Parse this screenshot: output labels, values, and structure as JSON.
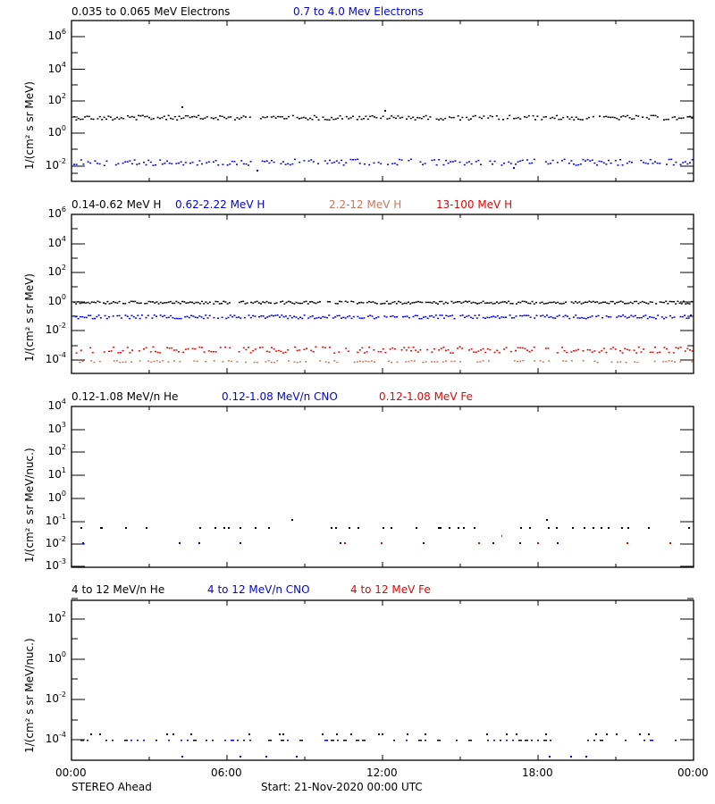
{
  "footer": {
    "spacecraft": "STEREO Ahead",
    "start": "Start: 21-Nov-2020 00:00 UTC"
  },
  "x_axis": {
    "ticks": [
      "00:00",
      "06:00",
      "12:00",
      "18:00",
      "00:00"
    ]
  },
  "colors": {
    "black": "#000000",
    "blue": "#0000ee",
    "salmon": "#c87860",
    "red": "#ee0000"
  },
  "panels": [
    {
      "ylabel": "1/(cm² s sr MeV)",
      "legend": [
        {
          "label": "0.035 to 0.065 MeV Electrons",
          "color": "#000000"
        },
        {
          "label": "0.7 to 4.0 Mev Electrons",
          "color": "#0000ee"
        }
      ],
      "yticks": [
        {
          "base": "10",
          "exp": "6"
        },
        {
          "base": "10",
          "exp": "4"
        },
        {
          "base": "10",
          "exp": "2"
        },
        {
          "base": "10",
          "exp": "0"
        },
        {
          "base": "10",
          "exp": "-2"
        }
      ]
    },
    {
      "ylabel": "1/(cm² s sr MeV)",
      "legend": [
        {
          "label": "0.14-0.62 MeV H",
          "color": "#000000"
        },
        {
          "label": "0.62-2.22 MeV H",
          "color": "#0000ee"
        },
        {
          "label": "2.2-12 MeV H",
          "color": "#c87860"
        },
        {
          "label": "13-100 MeV H",
          "color": "#ee0000"
        }
      ],
      "yticks": [
        {
          "base": "10",
          "exp": "6"
        },
        {
          "base": "10",
          "exp": "4"
        },
        {
          "base": "10",
          "exp": "2"
        },
        {
          "base": "10",
          "exp": "0"
        },
        {
          "base": "10",
          "exp": "-2"
        },
        {
          "base": "10",
          "exp": "-4"
        }
      ]
    },
    {
      "ylabel": "1/(cm² s sr MeV/nuc.)",
      "legend": [
        {
          "label": "0.12-1.08 MeV/n He",
          "color": "#000000"
        },
        {
          "label": "0.12-1.08 MeV/n CNO",
          "color": "#0000ee"
        },
        {
          "label": "0.12-1.08 MeV Fe",
          "color": "#ee0000"
        }
      ],
      "yticks": [
        {
          "base": "10",
          "exp": "4"
        },
        {
          "base": "10",
          "exp": "3"
        },
        {
          "base": "10",
          "exp": "2"
        },
        {
          "base": "10",
          "exp": "1"
        },
        {
          "base": "10",
          "exp": "0"
        },
        {
          "base": "10",
          "exp": "-1"
        },
        {
          "base": "10",
          "exp": "-2"
        },
        {
          "base": "10",
          "exp": "-3"
        }
      ]
    },
    {
      "ylabel": "1/(cm² s sr MeV/nuc.)",
      "legend": [
        {
          "label": "4 to 12 MeV/n He",
          "color": "#000000"
        },
        {
          "label": "4 to 12 MeV/n CNO",
          "color": "#0000ee"
        },
        {
          "label": "4 to 12 MeV Fe",
          "color": "#ee0000"
        }
      ],
      "yticks": [
        {
          "base": "10",
          "exp": "2"
        },
        {
          "base": "10",
          "exp": "0"
        },
        {
          "base": "10",
          "exp": "-2"
        },
        {
          "base": "10",
          "exp": "-4"
        }
      ]
    }
  ],
  "chart_data": [
    {
      "type": "scatter",
      "title": "",
      "xlabel": "Start: 21-Nov-2020 00:00 UTC",
      "ylabel": "1/(cm² s sr MeV)",
      "x_range_hours": [
        0,
        24
      ],
      "x_ticks": [
        "00:00",
        "06:00",
        "12:00",
        "18:00",
        "00:00"
      ],
      "yscale": "log",
      "ylim": [
        0.001,
        10000000
      ],
      "series": [
        {
          "name": "0.035 to 0.065 MeV Electrons",
          "color": "#000000",
          "typical_value": 8,
          "range": [
            5,
            12
          ],
          "notable": [
            {
              "hour": 4.4,
              "value": 30
            },
            {
              "hour": 12.1,
              "value": 18
            }
          ]
        },
        {
          "name": "0.7 to 4.0 Mev Electrons",
          "color": "#0000ee",
          "typical_value": 0.015,
          "range": [
            0.004,
            0.03
          ]
        }
      ]
    },
    {
      "type": "scatter",
      "xlabel": "Start: 21-Nov-2020 00:00 UTC",
      "ylabel": "1/(cm² s sr MeV)",
      "x_range_hours": [
        0,
        24
      ],
      "yscale": "log",
      "ylim": [
        1e-05,
        1000000
      ],
      "series": [
        {
          "name": "0.14-0.62 MeV H",
          "color": "#000000",
          "typical_value": 0.9,
          "range": [
            0.7,
            1.2
          ]
        },
        {
          "name": "0.62-2.22 MeV H",
          "color": "#0000ee",
          "typical_value": 0.08,
          "range": [
            0.05,
            0.12
          ]
        },
        {
          "name": "2.2-12 MeV H",
          "color": "#c87860",
          "typical_value": 0.0001,
          "range": [
            8e-05,
            0.0003
          ]
        },
        {
          "name": "13-100 MeV H",
          "color": "#ee0000",
          "typical_value": 0.0004,
          "range": [
            0.0002,
            0.0008
          ]
        }
      ]
    },
    {
      "type": "scatter",
      "xlabel": "Start: 21-Nov-2020 00:00 UTC",
      "ylabel": "1/(cm² s sr MeV/nuc.)",
      "x_range_hours": [
        0,
        24
      ],
      "yscale": "log",
      "ylim": [
        0.001,
        10000
      ],
      "series": [
        {
          "name": "0.12-1.08 MeV/n He",
          "color": "#000000",
          "typical_value": 0.05,
          "notable": [
            {
              "hour": 8.5,
              "value": 0.11
            },
            {
              "hour": 18.3,
              "value": 0.11
            }
          ]
        },
        {
          "name": "0.12-1.08 MeV/n CNO",
          "color": "#0000ee",
          "typical_value": 0.01
        },
        {
          "name": "0.12-1.08 MeV Fe",
          "color": "#ee0000",
          "typical_value": 0.01,
          "notable": [
            {
              "hour": 16.0,
              "value": 0.02
            }
          ]
        }
      ]
    },
    {
      "type": "scatter",
      "xlabel": "Start: 21-Nov-2020 00:00 UTC",
      "ylabel": "1/(cm² s sr MeV/nuc.)",
      "x_range_hours": [
        0,
        24
      ],
      "yscale": "log",
      "ylim": [
        1e-05,
        1000
      ],
      "series": [
        {
          "name": "4 to 12 MeV/n He",
          "color": "#000000",
          "typical_value": 0.0001,
          "range": [
            0.0001,
            0.0003
          ]
        },
        {
          "name": "4 to 12 MeV/n CNO",
          "color": "#0000ee",
          "typical_value": 0.0001,
          "range": [
            1e-05,
            0.00013
          ]
        },
        {
          "name": "4 to 12 MeV Fe",
          "color": "#ee0000",
          "typical_value": null
        }
      ]
    }
  ]
}
